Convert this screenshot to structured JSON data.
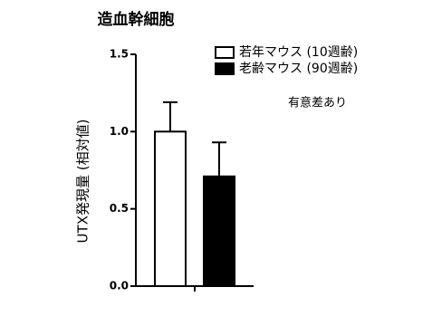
{
  "chart_data": {
    "type": "bar",
    "title": "造血幹細胞",
    "y_label": "UTX発現量 (相対値)",
    "annotation": "有意差あり",
    "categories": [
      null
    ],
    "series": [
      {
        "name": "若年マウス (10週齢)",
        "color": "#ffffff",
        "values": [
          1.0
        ],
        "errors": [
          0.19
        ]
      },
      {
        "name": "老齢マウス (90週齢)",
        "color": "#000000",
        "values": [
          0.71
        ],
        "errors": [
          0.22
        ]
      }
    ],
    "ylim": [
      0,
      1.5
    ],
    "yticks": [
      {
        "value": 0,
        "label": "0.0"
      },
      0.5,
      {
        "value": 1,
        "label": "1.0"
      },
      1.5
    ]
  }
}
